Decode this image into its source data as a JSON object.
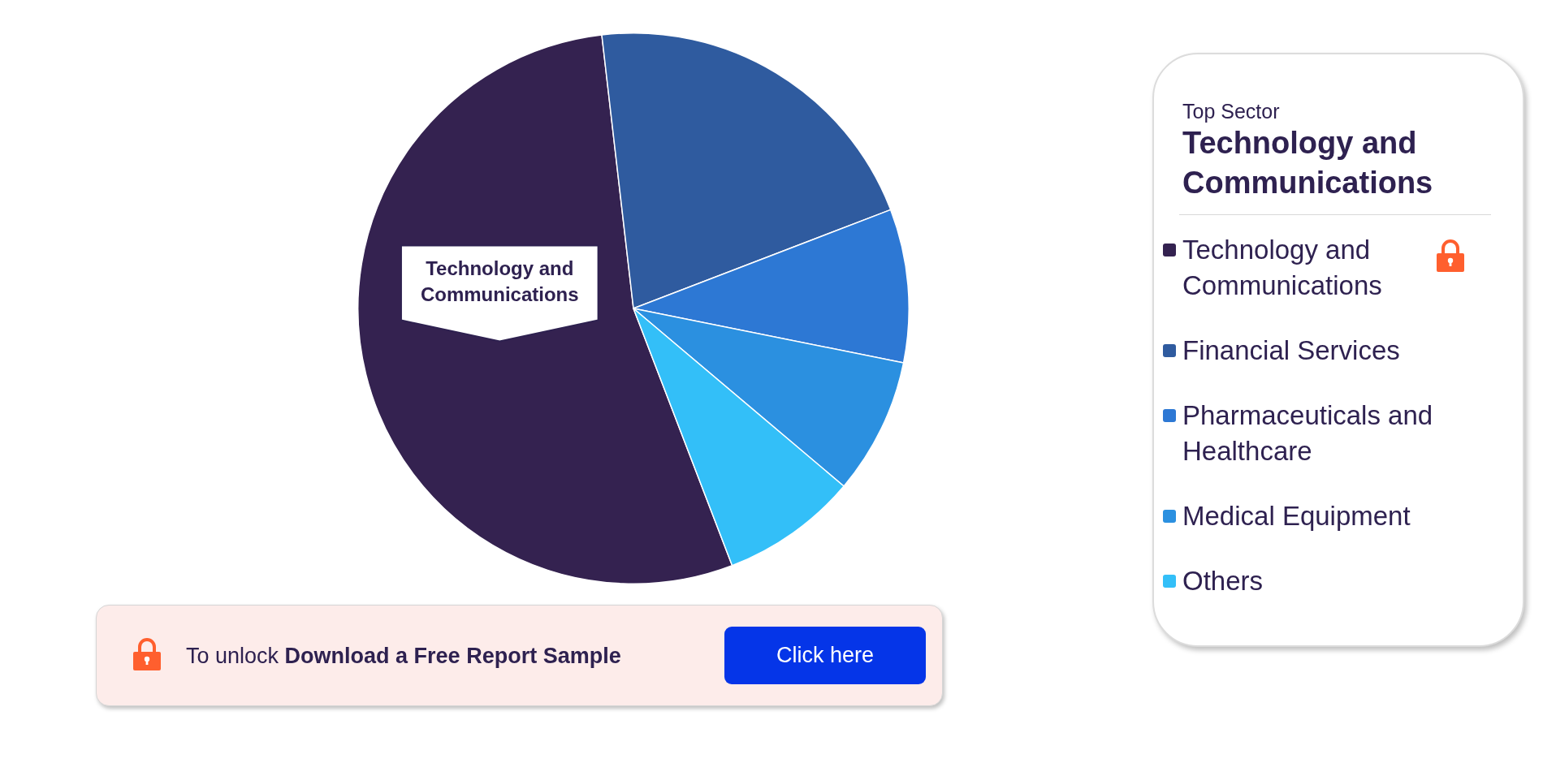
{
  "chart_data": {
    "type": "pie",
    "categories": [
      "Technology and Communications",
      "Financial Services",
      "Pharmaceuticals and Healthcare",
      "Medical Equipment",
      "Others"
    ],
    "values": [
      54,
      21,
      9,
      8,
      8
    ],
    "colors": [
      "#342250",
      "#2f5b9f",
      "#2d78d4",
      "#2b90e0",
      "#33bff8"
    ],
    "value_labels": [
      "Technology and Communications",
      null,
      null,
      null,
      null
    ],
    "legend": "right",
    "legend_title": "Top Sector",
    "annotations": [
      "Technology and Communications",
      "To unlock",
      "Download a Free Report Sample",
      "Click here"
    ]
  }
}
